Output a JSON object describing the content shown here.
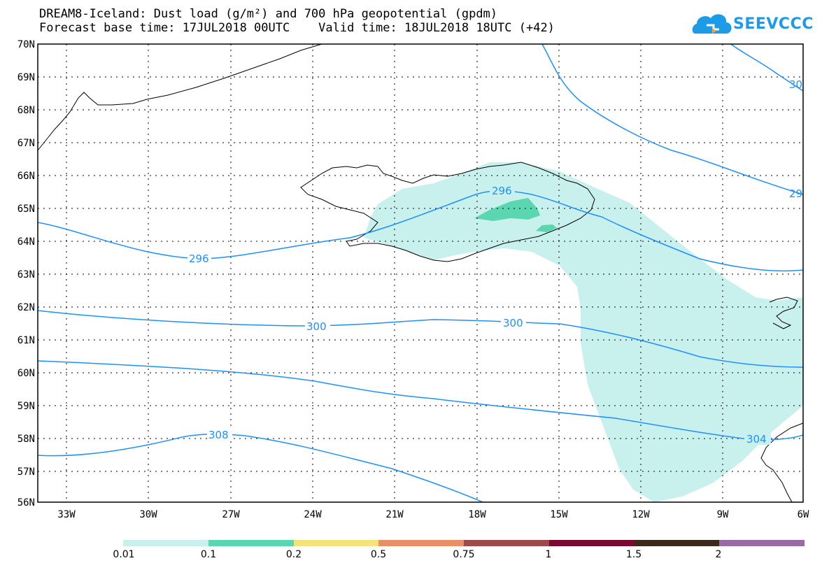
{
  "title": {
    "line1": "DREAM8-Iceland: Dust load (g/m²) and 700 hPa geopotential (gpdm)",
    "line2": "Forecast base time: 17JUL2018 00UTC    Valid time: 18JUL2018 18UTC (+42)"
  },
  "logo": {
    "text": "SEEVCCC",
    "icon": "cloud-logo-icon",
    "color": "#1d9be6"
  },
  "map": {
    "lat_labels": [
      "70N",
      "69N",
      "68N",
      "67N",
      "66N",
      "65N",
      "64N",
      "63N",
      "62N",
      "61N",
      "60N",
      "59N",
      "58N",
      "57N",
      "56N"
    ],
    "lon_labels": [
      "33W",
      "30W",
      "27W",
      "24W",
      "21W",
      "18W",
      "15W",
      "12W",
      "9W",
      "6W"
    ],
    "contour_color": "#1e90ff",
    "contour_labels": [
      "296",
      "296",
      "300",
      "300",
      "304",
      "308",
      "30",
      "29"
    ],
    "dust_colors": {
      "low": "#c8f0ec",
      "mid": "#5ad6b0"
    }
  },
  "legend": {
    "labels": [
      "0.01",
      "0.1",
      "0.2",
      "0.5",
      "0.75",
      "1",
      "1.5",
      "2"
    ],
    "colors": [
      "#c8f0ec",
      "#5ad6b0",
      "#f5e27a",
      "#e8906a",
      "#9c4a4a",
      "#7a0a30",
      "#3a2a1a",
      "#9a6aa6"
    ]
  }
}
